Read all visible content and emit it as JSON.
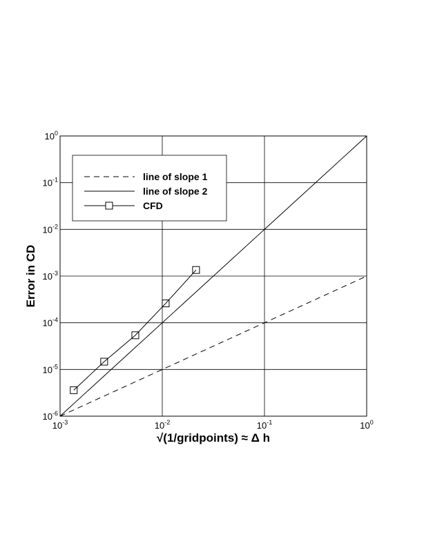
{
  "chart_data": {
    "type": "line",
    "xlabel": "√(1/gridpoints)  ≈ Δ h",
    "ylabel": "Error in CD",
    "xscale": "log",
    "yscale": "log",
    "grid": true,
    "legend": "upper left",
    "xlim": [
      0.001,
      1
    ],
    "ylim": [
      1e-06,
      1
    ],
    "xticks": [
      {
        "value": 0.001,
        "label": "10^-3"
      },
      {
        "value": 0.01,
        "label": "10^-2"
      },
      {
        "value": 0.1,
        "label": "10^-1"
      },
      {
        "value": 1,
        "label": "10^0"
      }
    ],
    "yticks": [
      {
        "value": 1e-06,
        "label": "10^-6"
      },
      {
        "value": 1e-05,
        "label": "10^-5"
      },
      {
        "value": 0.0001,
        "label": "10^-4"
      },
      {
        "value": 0.001,
        "label": "10^-3"
      },
      {
        "value": 0.01,
        "label": "10^-2"
      },
      {
        "value": 0.1,
        "label": "10^-1"
      },
      {
        "value": 1,
        "label": "10^0"
      }
    ],
    "series": [
      {
        "name": "line of slope 1",
        "color": "#000000",
        "dash": true,
        "x": [
          0.001,
          1
        ],
        "values": [
          1e-06,
          0.001
        ]
      },
      {
        "name": "line of slope 2",
        "color": "#000000",
        "dash": false,
        "x": [
          0.001,
          1
        ],
        "values": [
          1e-06,
          1
        ]
      },
      {
        "name": "CFD",
        "color": "#000000",
        "dash": false,
        "marker": "square",
        "x": [
          0.00136,
          0.0027,
          0.00545,
          0.0108,
          0.0214
        ],
        "values": [
          3.6e-06,
          1.47e-05,
          5.4e-05,
          0.00026,
          0.00135
        ]
      }
    ]
  }
}
